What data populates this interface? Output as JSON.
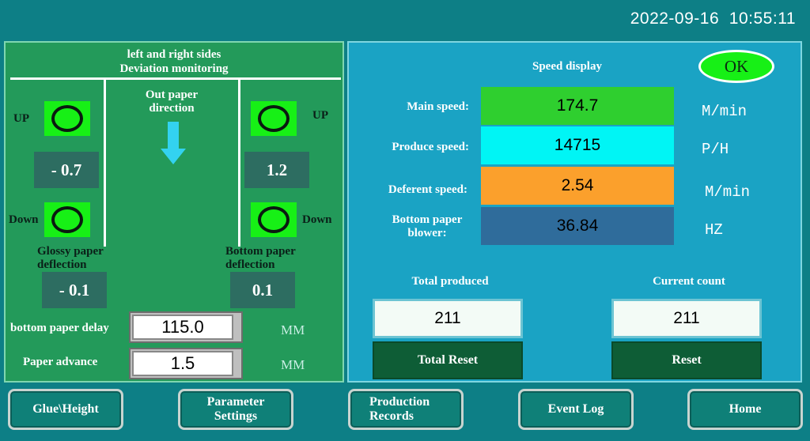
{
  "header": {
    "datetime": "2022-09-16  10:55:11"
  },
  "left_panel": {
    "title_line1": "left and right sides",
    "title_line2": "Deviation monitoring",
    "direction_line1": "Out paper",
    "direction_line2": "direction",
    "left_up_label": "UP",
    "left_down_label": "Down",
    "right_up_label": "UP",
    "right_down_label": "Down",
    "left_deviation": "- 0.7",
    "right_deviation": "1.2",
    "glossy_label_line1": "Glossy paper",
    "glossy_label_line2": "deflection",
    "glossy_value": "- 0.1",
    "bottom_label_line1": "Bottom paper",
    "bottom_label_line2": "deflection",
    "bottom_value": "0.1",
    "bottom_delay_label": "bottom paper delay",
    "bottom_delay_value": "115.0",
    "bottom_delay_unit": "MM",
    "paper_advance_label": "Paper advance",
    "paper_advance_value": "1.5",
    "paper_advance_unit": "MM",
    "indicator_color": "#17f016"
  },
  "right_panel": {
    "title": "Speed  display",
    "ok_label": "OK",
    "rows": [
      {
        "label": "Main speed:",
        "value": "174.7",
        "unit": "M/min",
        "color": "#2fcf2f"
      },
      {
        "label": "Produce  speed:",
        "value": "14715",
        "unit": "P/H",
        "color": "#00f5f5"
      },
      {
        "label": "Deferent speed:",
        "value": "2.54",
        "unit": "M/min",
        "color": "#fba02c"
      },
      {
        "label_line1": "Bottom paper",
        "label_line2": "blower:",
        "value": "36.84",
        "unit": "HZ",
        "color": "#2f6c9b"
      }
    ],
    "total_produced_label": "Total produced",
    "total_produced_value": "211",
    "current_count_label": "Current count",
    "current_count_value": "211",
    "total_reset_label": "Total Reset",
    "reset_label": "Reset"
  },
  "nav": {
    "glue_height": "Glue\\Height",
    "parameter_line1": "Parameter",
    "parameter_line2": "Settings",
    "production_line1": "Production",
    "production_line2": "Records",
    "event_log": "Event Log",
    "home": "Home"
  }
}
